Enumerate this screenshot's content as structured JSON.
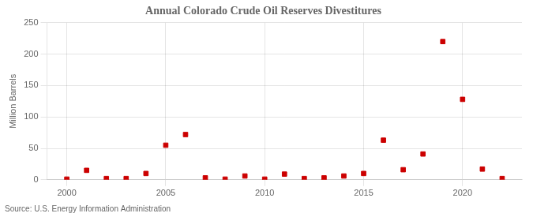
{
  "chart_data": {
    "type": "scatter",
    "title": "Annual Colorado Crude Oil Reserves Divestitures",
    "y_label": "Million Barrels",
    "annotation": "Source: U.S. Energy Information Administration",
    "x": [
      2000,
      2001,
      2002,
      2003,
      2004,
      2005,
      2006,
      2007,
      2008,
      2009,
      2010,
      2011,
      2012,
      2013,
      2014,
      2015,
      2016,
      2017,
      2018,
      2019,
      2020,
      2021,
      2022
    ],
    "values": [
      1,
      15,
      2,
      2,
      10,
      55,
      72,
      3,
      1,
      6,
      1,
      9,
      2,
      3,
      6,
      10,
      63,
      16,
      41,
      220,
      128,
      17,
      2
    ],
    "color": "#cc0000",
    "marker": "square",
    "xlim": [
      1999,
      2023
    ],
    "xticks": [
      2000,
      2005,
      2010,
      2015,
      2020
    ],
    "ylim": [
      0,
      250
    ],
    "yticks": [
      0,
      50,
      100,
      150,
      200,
      250
    ],
    "grid": true
  }
}
